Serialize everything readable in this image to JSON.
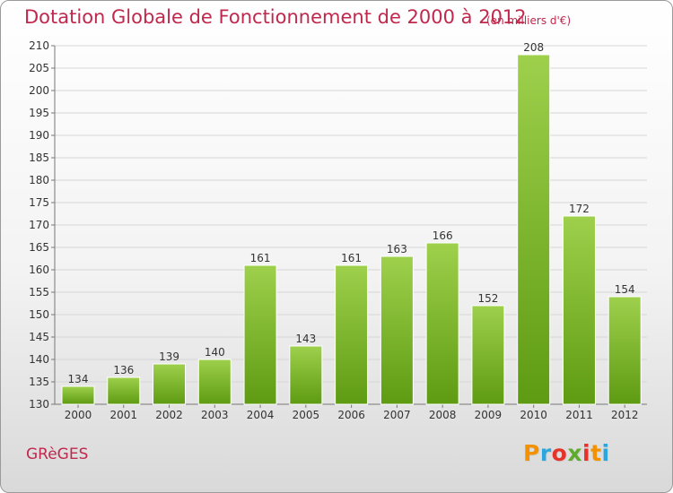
{
  "header": {
    "title": "Dotation Globale de Fonctionnement de 2000 à 2012",
    "subtitle": "(en milliers d'€)"
  },
  "footer": {
    "commune": "GRèGES",
    "logo_text": "Proxiti",
    "logo_colors": [
      "#f39200",
      "#2aa7df",
      "#e6332a",
      "#5fab2e",
      "#e6332a",
      "#f39200",
      "#2aa7df"
    ]
  },
  "colors": {
    "title": "#c0284d",
    "bar_light": "#9ed04c",
    "bar_dark": "#5e9b12",
    "grid": "#d6d6d6"
  },
  "chart_data": {
    "type": "bar",
    "categories": [
      "2000",
      "2001",
      "2002",
      "2003",
      "2004",
      "2005",
      "2006",
      "2007",
      "2008",
      "2009",
      "2010",
      "2011",
      "2012"
    ],
    "values": [
      134,
      136,
      139,
      140,
      161,
      143,
      161,
      163,
      166,
      152,
      208,
      172,
      154
    ],
    "ylim": [
      130,
      210
    ],
    "yticks": [
      130,
      135,
      140,
      145,
      150,
      155,
      160,
      165,
      170,
      175,
      180,
      185,
      190,
      195,
      200,
      205,
      210
    ],
    "grid": true,
    "data_labels": true
  }
}
